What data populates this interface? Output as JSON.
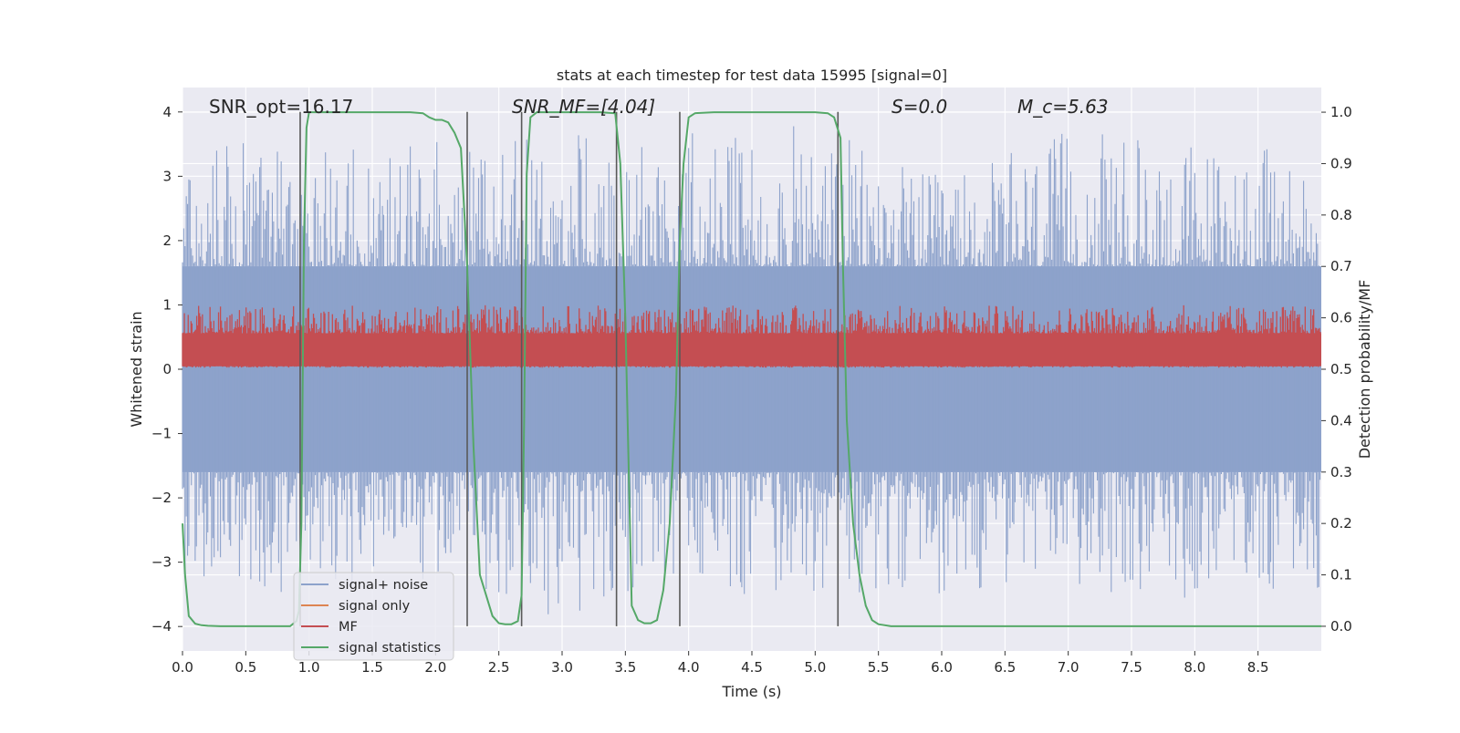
{
  "colors": {
    "background": "#eaeaf2",
    "grid": "#ffffff",
    "noise": "#8da2cb",
    "signal_only": "#dd8452",
    "mf": "#c44e52",
    "stat": "#55a868",
    "vline": "#595959"
  },
  "chart_data": {
    "type": "line",
    "title": "stats at each timestep for test data 15995 [signal=0]",
    "xlabel": "Time (s)",
    "ylabel": "Whitened strain",
    "ylabel_right": "Detection probability/MF",
    "xlim": [
      0.0,
      9.0
    ],
    "ylim": [
      -4.38,
      4.38
    ],
    "ylim_right": [
      -0.048,
      1.048
    ],
    "grid": true,
    "legend_position": "lower-left",
    "x_ticks": [
      "0.0",
      "0.5",
      "1.0",
      "1.5",
      "2.0",
      "2.5",
      "3.0",
      "3.5",
      "4.0",
      "4.5",
      "5.0",
      "5.5",
      "6.0",
      "6.5",
      "7.0",
      "7.5",
      "8.0",
      "8.5"
    ],
    "y_ticks_left": [
      "−4",
      "−3",
      "−2",
      "−1",
      "0",
      "1",
      "2",
      "3",
      "4"
    ],
    "y_ticks_right": [
      "0.0",
      "0.1",
      "0.2",
      "0.3",
      "0.4",
      "0.5",
      "0.6",
      "0.7",
      "0.8",
      "0.9",
      "1.0"
    ],
    "annotations": [
      {
        "id": "snr-opt",
        "text": "SNR_opt=16.17",
        "x": 0.2
      },
      {
        "id": "snr-mf",
        "text": "SNR_MF=[4.04]",
        "x": 2.6
      },
      {
        "id": "s-value",
        "text": "S=0.0",
        "x": 5.6
      },
      {
        "id": "mc-value",
        "text": "M_c=5.63",
        "x": 6.6
      }
    ],
    "legend": [
      {
        "key": "noise",
        "label": "signal+ noise"
      },
      {
        "key": "signal_only",
        "label": "signal only"
      },
      {
        "key": "mf",
        "label": "MF"
      },
      {
        "key": "stat",
        "label": "signal statistics"
      }
    ],
    "series": [
      {
        "name": "signal+ noise",
        "axis": "left",
        "style": "noise-band",
        "envelope": {
          "t": [
            0.0,
            1.0,
            2.0,
            3.0,
            4.0,
            5.0,
            6.0,
            7.0,
            8.0,
            9.0
          ],
          "typical_high": [
            1.6,
            1.6,
            1.6,
            1.6,
            1.6,
            1.6,
            1.6,
            1.6,
            1.6,
            1.6
          ],
          "typical_low": [
            -1.6,
            -1.6,
            -1.6,
            -1.6,
            -1.6,
            -1.6,
            -1.6,
            -1.6,
            -1.6,
            -1.6
          ],
          "peak_high": [
            3.7,
            3.5,
            3.6,
            3.7,
            3.7,
            3.8,
            3.0,
            3.7,
            3.6,
            3.3
          ],
          "peak_low": [
            -3.7,
            -3.4,
            -3.3,
            -3.9,
            -3.3,
            -3.8,
            -3.5,
            -3.4,
            -3.6,
            -3.4
          ]
        }
      },
      {
        "name": "MF",
        "axis": "right",
        "style": "noise-band",
        "envelope": {
          "t": [
            0.0,
            9.0
          ],
          "typical_high": [
            0.57,
            0.57
          ],
          "typical_low": [
            0.506,
            0.506
          ],
          "peak_high": [
            0.625,
            0.625
          ],
          "peak_low": [
            0.503,
            0.503
          ]
        }
      },
      {
        "name": "signal statistics",
        "axis": "right",
        "style": "line",
        "x": [
          0.0,
          0.02,
          0.05,
          0.1,
          0.15,
          0.2,
          0.3,
          0.5,
          0.7,
          0.85,
          0.9,
          0.92,
          0.94,
          0.96,
          0.98,
          1.0,
          1.05,
          1.2,
          1.5,
          1.8,
          1.9,
          1.95,
          2.0,
          2.05,
          2.1,
          2.15,
          2.2,
          2.25,
          2.3,
          2.35,
          2.4,
          2.45,
          2.5,
          2.55,
          2.6,
          2.65,
          2.68,
          2.7,
          2.72,
          2.75,
          2.8,
          2.85,
          3.0,
          3.3,
          3.42,
          3.46,
          3.5,
          3.55,
          3.6,
          3.65,
          3.7,
          3.75,
          3.8,
          3.85,
          3.9,
          3.93,
          3.96,
          4.0,
          4.05,
          4.2,
          4.6,
          5.0,
          5.1,
          5.15,
          5.2,
          5.22,
          5.25,
          5.3,
          5.35,
          5.4,
          5.45,
          5.5,
          5.6,
          6.0,
          7.0,
          8.0,
          9.0
        ],
        "y": [
          0.2,
          0.1,
          0.02,
          0.005,
          0.002,
          0.001,
          0.0,
          0.0,
          0.0,
          0.0,
          0.01,
          0.03,
          0.2,
          0.75,
          0.97,
          1.0,
          1.0,
          1.0,
          1.0,
          1.0,
          0.998,
          0.99,
          0.985,
          0.985,
          0.98,
          0.96,
          0.93,
          0.7,
          0.35,
          0.1,
          0.06,
          0.02,
          0.006,
          0.004,
          0.004,
          0.01,
          0.06,
          0.4,
          0.88,
          0.99,
          1.0,
          1.0,
          1.0,
          1.0,
          0.998,
          0.9,
          0.6,
          0.04,
          0.012,
          0.006,
          0.006,
          0.012,
          0.07,
          0.2,
          0.45,
          0.75,
          0.9,
          0.99,
          0.998,
          1.0,
          1.0,
          1.0,
          0.998,
          0.99,
          0.95,
          0.7,
          0.4,
          0.2,
          0.1,
          0.04,
          0.012,
          0.004,
          0.0,
          0.0,
          0.0,
          0.0,
          0.0
        ]
      },
      {
        "name": "signal only",
        "axis": "left",
        "style": "line",
        "x": [],
        "y": []
      }
    ],
    "vlines": [
      {
        "x": 0.93,
        "ymax": 4.0
      },
      {
        "x": 2.25,
        "ymax": 4.0
      },
      {
        "x": 2.68,
        "ymax": 4.0
      },
      {
        "x": 3.43,
        "ymax": 4.0
      },
      {
        "x": 3.93,
        "ymax": 4.0
      },
      {
        "x": 5.18,
        "ymax": 4.0
      }
    ]
  }
}
